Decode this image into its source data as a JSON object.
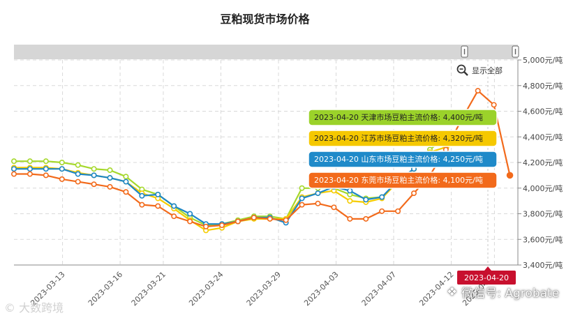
{
  "title": "豆粕现货市场价格",
  "zoom": {
    "show_all_label": "显示全部"
  },
  "watermarks": {
    "left": "© 大数跨境",
    "right": "微信号: Agrobate"
  },
  "crosshair_date": "2023-04-20",
  "tooltips": [
    {
      "text": "2023-04-20 天津市场豆粕主流价格: 4,400元/吨",
      "color": "#9bd22a",
      "text_color": "#222222"
    },
    {
      "text": "2023-04-20 江苏市场豆粕主流价格: 4,320元/吨",
      "color": "#f5c800",
      "text_color": "#222222"
    },
    {
      "text": "2023-04-20 山东市场豆粕主流价格: 4,250元/吨",
      "color": "#1f8ac9",
      "text_color": "#ffffff"
    },
    {
      "text": "2023-04-20 东莞市场豆粕主流价格: 4,100元/吨",
      "color": "#f26a1b",
      "text_color": "#ffffff"
    }
  ],
  "chart_data": {
    "type": "line",
    "title": "豆粕现货市场价格",
    "y_unit": "元/吨",
    "ylim": [
      3400,
      5000
    ],
    "y_ticks": [
      "3,400元/吨",
      "3,600元/吨",
      "3,800元/吨",
      "4,000元/吨",
      "4,200元/吨",
      "4,400元/吨",
      "4,600元/吨",
      "4,800元/吨",
      "5,000元/吨"
    ],
    "x_ticks": [
      "2023-03-13",
      "2023-03-16",
      "2023-03-21",
      "2023-03-24",
      "2023-03-29",
      "2023-04-03",
      "2023-04-07",
      "2023-04-12",
      "2023-04-17",
      "2023-04-20"
    ],
    "grid": true,
    "series": [
      {
        "name": "天津市场豆粕主流价格",
        "color": "#a5d82b",
        "points": [
          [
            0,
            4210
          ],
          [
            1,
            4210
          ],
          [
            2,
            4210
          ],
          [
            3,
            4200
          ],
          [
            4,
            4180
          ],
          [
            5,
            4150
          ],
          [
            6,
            4140
          ],
          [
            7,
            4090
          ],
          [
            8,
            3990
          ],
          [
            9,
            3950
          ],
          [
            10,
            3860
          ],
          [
            11,
            3770
          ],
          [
            12,
            3710
          ],
          [
            13,
            3720
          ],
          [
            14,
            3750
          ],
          [
            15,
            3780
          ],
          [
            16,
            3780
          ],
          [
            17,
            3760
          ],
          [
            18,
            4000
          ],
          [
            19,
            4000
          ],
          [
            20,
            4000
          ],
          [
            21,
            3950
          ],
          [
            22,
            3920
          ],
          [
            23,
            3930
          ],
          [
            24,
            4050
          ],
          [
            25,
            4150
          ],
          [
            26,
            4300
          ],
          [
            27,
            4400
          ]
        ]
      },
      {
        "name": "江苏市场豆粕主流价格",
        "color": "#f5cc00",
        "points": [
          [
            0,
            4160
          ],
          [
            1,
            4160
          ],
          [
            2,
            4160
          ],
          [
            3,
            4150
          ],
          [
            4,
            4120
          ],
          [
            5,
            4100
          ],
          [
            6,
            4080
          ],
          [
            7,
            4050
          ],
          [
            8,
            3960
          ],
          [
            9,
            3920
          ],
          [
            10,
            3840
          ],
          [
            11,
            3750
          ],
          [
            12,
            3670
          ],
          [
            13,
            3690
          ],
          [
            14,
            3740
          ],
          [
            15,
            3760
          ],
          [
            16,
            3760
          ],
          [
            17,
            3760
          ],
          [
            18,
            3930
          ],
          [
            19,
            3960
          ],
          [
            20,
            3980
          ],
          [
            21,
            3900
          ],
          [
            22,
            3890
          ],
          [
            23,
            3920
          ],
          [
            24,
            4050
          ],
          [
            25,
            4150
          ],
          [
            26,
            4280
          ],
          [
            27,
            4320
          ]
        ]
      },
      {
        "name": "山东市场豆粕主流价格",
        "color": "#1d86c6",
        "points": [
          [
            0,
            4150
          ],
          [
            1,
            4150
          ],
          [
            2,
            4150
          ],
          [
            3,
            4150
          ],
          [
            4,
            4110
          ],
          [
            5,
            4100
          ],
          [
            6,
            4080
          ],
          [
            7,
            4050
          ],
          [
            8,
            3940
          ],
          [
            9,
            3950
          ],
          [
            10,
            3860
          ],
          [
            11,
            3800
          ],
          [
            12,
            3720
          ],
          [
            13,
            3720
          ],
          [
            14,
            3740
          ],
          [
            15,
            3770
          ],
          [
            16,
            3770
          ],
          [
            17,
            3730
          ],
          [
            18,
            3920
          ],
          [
            19,
            3960
          ],
          [
            20,
            4010
          ],
          [
            21,
            3980
          ],
          [
            22,
            3910
          ],
          [
            23,
            3930
          ],
          [
            24,
            4060
          ],
          [
            25,
            4150
          ],
          [
            26,
            4260
          ],
          [
            27,
            4250
          ]
        ]
      },
      {
        "name": "东莞市场豆粕主流价格",
        "color": "#f26a1b",
        "points": [
          [
            0,
            4110
          ],
          [
            1,
            4110
          ],
          [
            2,
            4100
          ],
          [
            3,
            4070
          ],
          [
            4,
            4050
          ],
          [
            5,
            4030
          ],
          [
            6,
            4010
          ],
          [
            7,
            3970
          ],
          [
            8,
            3870
          ],
          [
            9,
            3860
          ],
          [
            10,
            3780
          ],
          [
            11,
            3740
          ],
          [
            12,
            3700
          ],
          [
            13,
            3710
          ],
          [
            14,
            3740
          ],
          [
            15,
            3770
          ],
          [
            16,
            3760
          ],
          [
            17,
            3750
          ],
          [
            18,
            3870
          ],
          [
            19,
            3880
          ],
          [
            20,
            3850
          ],
          [
            21,
            3760
          ],
          [
            22,
            3760
          ],
          [
            23,
            3820
          ],
          [
            24,
            3820
          ],
          [
            25,
            3960
          ],
          [
            26,
            4100
          ],
          [
            27,
            4300
          ],
          [
            28,
            4540
          ],
          [
            29,
            4760
          ],
          [
            30,
            4650
          ],
          [
            31,
            4100
          ]
        ]
      }
    ]
  }
}
